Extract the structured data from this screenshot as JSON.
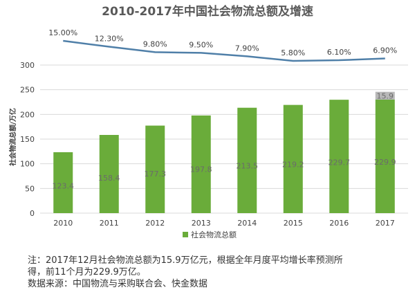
{
  "chart_data": {
    "type": "bar",
    "title": "2010-2017年中国社会物流总额及增速",
    "ylabel": "社会物流总额/万亿",
    "ylim": [
      0,
      300
    ],
    "yticks": [
      "0",
      "50",
      "100",
      "150",
      "200",
      "250",
      "300"
    ],
    "categories": [
      "2010",
      "2011",
      "2012",
      "2013",
      "2014",
      "2015",
      "2016",
      "2017"
    ],
    "series": [
      {
        "name": "社会物流总额",
        "type": "bar",
        "values": [
          123.4,
          158.4,
          177.3,
          197.8,
          213.5,
          219.2,
          229.7,
          229.9
        ],
        "labels": [
          "123.4",
          "158.4",
          "177.3",
          "197.8",
          "213.5",
          "219.2",
          "229.7",
          "229.9"
        ],
        "color": "#6aac3a"
      },
      {
        "type": "bar-stack",
        "category": "2017",
        "value": 15.9,
        "label": "15.9",
        "color": "#b8b8b8"
      },
      {
        "type": "line",
        "values": [
          15.0,
          12.3,
          9.8,
          9.5,
          7.9,
          5.8,
          6.1,
          6.9
        ],
        "labels": [
          "15.00%",
          "12.30%",
          "9.80%",
          "9.50%",
          "7.90%",
          "5.80%",
          "6.10%",
          "6.90%"
        ],
        "unit": "%",
        "color": "#4f7fa8"
      }
    ],
    "legend": {
      "label": "社会物流总额",
      "position": "bottom"
    },
    "grid": true
  },
  "notes": {
    "line1": "注：2017年12月社会物流总额为15.9万亿元，根据全年月度平均增长率预测所",
    "line2": "得，前11个月为229.9万亿。",
    "line3": "数据来源：中国物流与采购联合会、快金数据"
  }
}
